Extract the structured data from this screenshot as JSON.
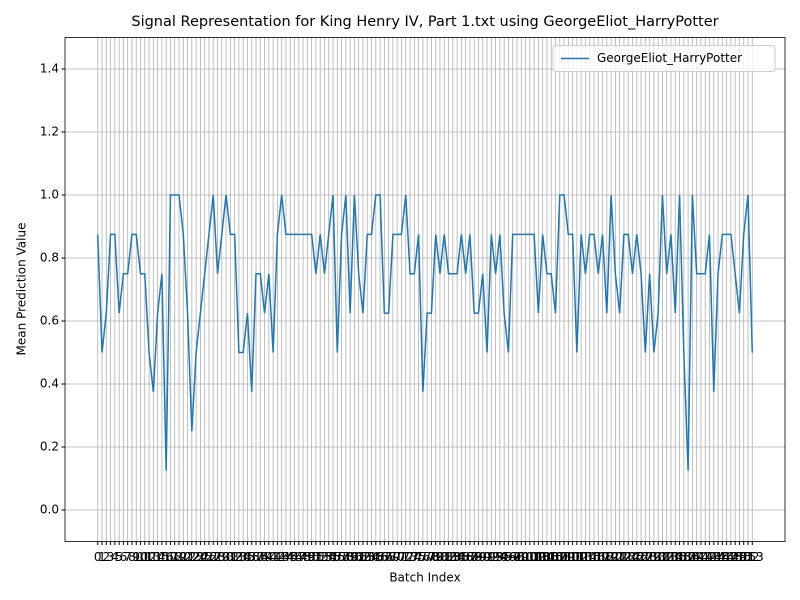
{
  "chart_data": {
    "type": "line",
    "title": "Signal Representation for King Henry IV, Part 1.txt using GeorgeEliot_HarryPotter",
    "x_label": "Batch Index",
    "y_label": "Mean Prediction Value",
    "x": [
      0,
      1,
      2,
      3,
      4,
      5,
      6,
      7,
      8,
      9,
      10,
      11,
      12,
      13,
      14,
      15,
      16,
      17,
      18,
      19,
      20,
      21,
      22,
      23,
      24,
      25,
      26,
      27,
      28,
      29,
      30,
      31,
      32,
      33,
      34,
      35,
      36,
      37,
      38,
      39,
      40,
      41,
      42,
      43,
      44,
      45,
      46,
      47,
      48,
      49,
      50,
      51,
      52,
      53,
      54,
      55,
      56,
      57,
      58,
      59,
      60,
      61,
      62,
      63,
      64,
      65,
      66,
      67,
      68,
      69,
      70,
      71,
      72,
      73,
      74,
      75,
      76,
      77,
      78,
      79,
      80,
      81,
      82,
      83,
      84,
      85,
      86,
      87,
      88,
      89,
      90,
      91,
      92,
      93,
      94,
      95,
      96,
      97,
      98,
      99,
      100,
      101,
      102,
      103,
      104,
      105,
      106,
      107,
      108,
      109,
      110,
      111,
      112,
      113,
      114,
      115,
      116,
      117,
      118,
      119,
      120,
      121,
      122,
      123,
      124,
      125,
      126,
      127,
      128,
      129,
      130,
      131,
      132,
      133,
      134,
      135,
      136,
      137,
      138,
      139,
      140,
      141,
      142,
      143,
      144,
      145,
      146,
      147,
      148,
      149,
      150,
      151,
      152,
      153
    ],
    "series": [
      {
        "name": "GeorgeEliot_HarryPotter",
        "color": "#1f77b4",
        "values": [
          0.875,
          0.5,
          0.625,
          0.875,
          0.875,
          0.625,
          0.75,
          0.75,
          0.875,
          0.875,
          0.75,
          0.75,
          0.5,
          0.375,
          0.625,
          0.75,
          0.125,
          1,
          1,
          1,
          0.875,
          0.625,
          0.25,
          0.5,
          0.625,
          0.75,
          0.875,
          1,
          0.75,
          0.875,
          1,
          0.875,
          0.875,
          0.5,
          0.5,
          0.625,
          0.375,
          0.75,
          0.75,
          0.625,
          0.75,
          0.5,
          0.875,
          1,
          0.875,
          0.875,
          0.875,
          0.875,
          0.875,
          0.875,
          0.875,
          0.75,
          0.875,
          0.75,
          0.875,
          1,
          0.5,
          0.875,
          1,
          0.625,
          1,
          0.75,
          0.625,
          0.875,
          0.875,
          1,
          1,
          0.625,
          0.625,
          0.875,
          0.875,
          0.875,
          1,
          0.75,
          0.75,
          0.875,
          0.375,
          0.625,
          0.625,
          0.875,
          0.75,
          0.875,
          0.75,
          0.75,
          0.75,
          0.875,
          0.75,
          0.875,
          0.625,
          0.625,
          0.75,
          0.5,
          0.875,
          0.75,
          0.875,
          0.625,
          0.5,
          0.875,
          0.875,
          0.875,
          0.875,
          0.875,
          0.875,
          0.625,
          0.875,
          0.75,
          0.75,
          0.625,
          1,
          1,
          0.875,
          0.875,
          0.5,
          0.875,
          0.75,
          0.875,
          0.875,
          0.75,
          0.875,
          0.625,
          1,
          0.75,
          0.625,
          0.875,
          0.875,
          0.75,
          0.875,
          0.75,
          0.5,
          0.75,
          0.5,
          0.625,
          1,
          0.75,
          0.875,
          0.625,
          1,
          0.5,
          0.125,
          1,
          0.75,
          0.75,
          0.75,
          0.875,
          0.375,
          0.75,
          0.875,
          0.875,
          0.875,
          0.75,
          0.625,
          0.875,
          1,
          0.5
        ]
      }
    ],
    "xlim": [
      -7.65,
      160.65
    ],
    "xticks": [
      0,
      1,
      2,
      3,
      4,
      5,
      6,
      7,
      8,
      9,
      10,
      11,
      12,
      13,
      14,
      15,
      16,
      17,
      18,
      19,
      20,
      21,
      22,
      23,
      24,
      25,
      26,
      27,
      28,
      29,
      30,
      31,
      32,
      33,
      34,
      35,
      36,
      37,
      38,
      39,
      40,
      41,
      42,
      43,
      44,
      45,
      46,
      47,
      48,
      49,
      50,
      51,
      52,
      53,
      54,
      55,
      56,
      57,
      58,
      59,
      60,
      61,
      62,
      63,
      64,
      65,
      66,
      67,
      68,
      69,
      70,
      71,
      72,
      73,
      74,
      75,
      76,
      77,
      78,
      79,
      80,
      81,
      82,
      83,
      84,
      85,
      86,
      87,
      88,
      89,
      90,
      91,
      92,
      93,
      94,
      95,
      96,
      97,
      98,
      99,
      100,
      101,
      102,
      103,
      104,
      105,
      106,
      107,
      108,
      109,
      110,
      111,
      112,
      113,
      114,
      115,
      116,
      117,
      118,
      119,
      120,
      121,
      122,
      123,
      124,
      125,
      126,
      127,
      128,
      129,
      130,
      131,
      132,
      133,
      134,
      135,
      136,
      137,
      138,
      139,
      140,
      141,
      142,
      143,
      144,
      145,
      146,
      147,
      148,
      149,
      150,
      151,
      152,
      153
    ],
    "ylim": [
      -0.1,
      1.5
    ],
    "yticks": [
      {
        "value": 0,
        "label": "0.0"
      },
      0.2,
      0.4,
      0.6,
      0.8,
      {
        "value": 1,
        "label": "1.0"
      },
      1.2,
      1.4
    ],
    "grid": true,
    "legend": "upper right"
  }
}
